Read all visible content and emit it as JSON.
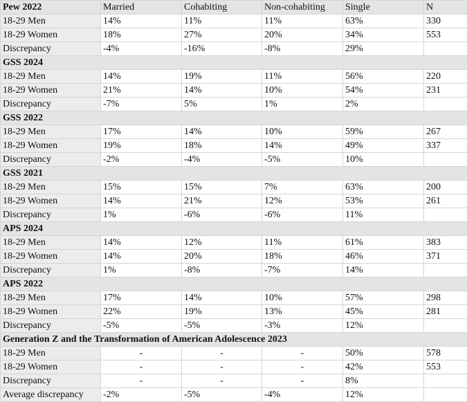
{
  "sections": [
    {
      "title": "Pew 2022",
      "columns": [
        "Married",
        "Cohabiting",
        "Non-cohabiting",
        "Single",
        "N"
      ],
      "rows": [
        [
          "18-29 Men",
          "14%",
          "11%",
          "11%",
          "63%",
          "330"
        ],
        [
          "18-29 Women",
          "18%",
          "27%",
          "20%",
          "34%",
          "553"
        ],
        [
          "Discrepancy",
          "-4%",
          "-16%",
          "-8%",
          "29%"
        ]
      ]
    },
    {
      "title": "GSS 2024",
      "rows": [
        [
          "18-29 Men",
          "14%",
          "19%",
          "11%",
          "56%",
          "220"
        ],
        [
          "18-29 Women",
          "21%",
          "14%",
          "10%",
          "54%",
          "231"
        ],
        [
          "Discrepancy",
          "-7%",
          "5%",
          "1%",
          "2%"
        ]
      ]
    },
    {
      "title": "GSS 2022",
      "rows": [
        [
          "18-29 Men",
          "17%",
          "14%",
          "10%",
          "59%",
          "267"
        ],
        [
          "18-29 Women",
          "19%",
          "18%",
          "14%",
          "49%",
          "337"
        ],
        [
          "Discrepancy",
          "-2%",
          "-4%",
          "-5%",
          "10%"
        ]
      ]
    },
    {
      "title": "GSS 2021",
      "rows": [
        [
          "18-29 Men",
          "15%",
          "15%",
          "7%",
          "63%",
          "200"
        ],
        [
          "18-29 Women",
          "14%",
          "21%",
          "12%",
          "53%",
          "261"
        ],
        [
          "Discrepancy",
          "1%",
          "-6%",
          "-6%",
          "11%"
        ]
      ]
    },
    {
      "title": "APS 2024",
      "rows": [
        [
          "18-29 Men",
          "14%",
          "12%",
          "11%",
          "61%",
          "383"
        ],
        [
          "18-29 Women",
          "14%",
          "20%",
          "18%",
          "46%",
          "371"
        ],
        [
          "Discrepancy",
          "1%",
          "-8%",
          "-7%",
          "14%"
        ]
      ]
    },
    {
      "title": "APS 2022",
      "rows": [
        [
          "18-29 Men",
          "17%",
          "14%",
          "10%",
          "57%",
          "298"
        ],
        [
          "18-29 Women",
          "22%",
          "19%",
          "13%",
          "45%",
          "281"
        ],
        [
          "Discrepancy",
          "-5%",
          "-5%",
          "-3%",
          "12%"
        ]
      ]
    },
    {
      "title": "Generation Z and the Transformation of American Adolescence 2023",
      "rows": [
        [
          "18-29 Men",
          "-",
          "-",
          "-",
          "50%",
          "578"
        ],
        [
          "18-29 Women",
          "-",
          "-",
          "-",
          "42%",
          "553"
        ],
        [
          "Discrepancy",
          "-",
          "-",
          "-",
          "8%"
        ],
        [
          "Average discrepancy",
          "-2%",
          "-5%",
          "-4%",
          "12%"
        ]
      ]
    }
  ]
}
